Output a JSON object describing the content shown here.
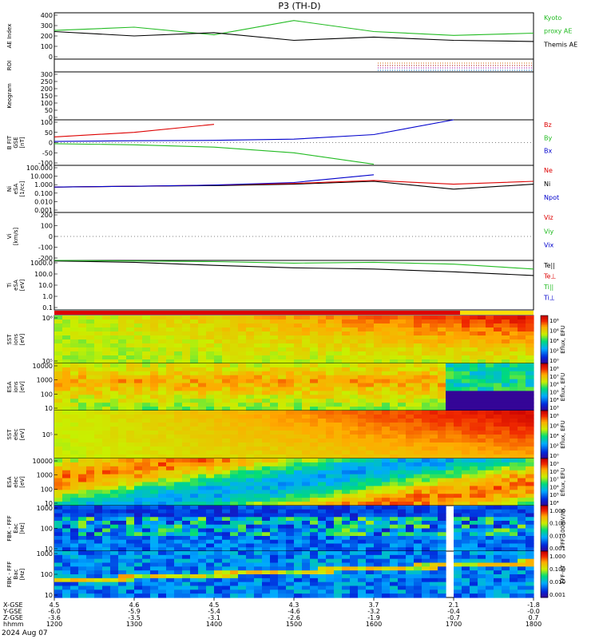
{
  "title": "P3 (TH-D)",
  "date_label": "2024 Aug 07",
  "ephemeris": {
    "row_labels": [
      "X-GSE",
      "Y-GSE",
      "Z-GSE",
      "hhmm"
    ],
    "columns": [
      {
        "x": "4.5",
        "y": "-6.0",
        "z": "-3.6",
        "t": "1200"
      },
      {
        "x": "4.6",
        "y": "-5.9",
        "z": "-3.5",
        "t": "1300"
      },
      {
        "x": "4.5",
        "y": "-5.4",
        "z": "-3.1",
        "t": "1400"
      },
      {
        "x": "4.3",
        "y": "-4.6",
        "z": "-2.6",
        "t": "1500"
      },
      {
        "x": "3.7",
        "y": "-3.2",
        "z": "-1.9",
        "t": "1600"
      },
      {
        "x": "2.1",
        "y": "-0.4",
        "z": "-0.7",
        "t": "1700"
      },
      {
        "x": "-1.8",
        "y": "-0.0",
        "z": "0.7",
        "t": "1800"
      }
    ]
  },
  "panels": [
    {
      "id": "ae",
      "ylabel": [
        "AE Index"
      ],
      "ticks": [
        "400",
        "300",
        "200",
        "100",
        "0"
      ],
      "legend": [
        {
          "text": "Kyoto",
          "color": "#22bb22"
        },
        {
          "text": "proxy AE",
          "color": "#22bb22"
        },
        {
          "text": "Themis AE",
          "color": "#000000"
        }
      ]
    },
    {
      "id": "roi",
      "ylabel": [
        "ROI"
      ],
      "ticks": [],
      "legend": []
    },
    {
      "id": "keogram",
      "ylabel": [
        "Keogram"
      ],
      "ticks": [
        "300",
        "250",
        "200",
        "150",
        "100",
        "50",
        "0"
      ],
      "legend": []
    },
    {
      "id": "bfit",
      "ylabel": [
        "B FIT",
        "GSE",
        "[nT]"
      ],
      "ticks": [
        "100",
        "50",
        "0",
        "-50",
        "-100"
      ],
      "legend": [
        {
          "text": "Bz",
          "color": "#dd0000"
        },
        {
          "text": "By",
          "color": "#22bb22"
        },
        {
          "text": "Bx",
          "color": "#0000cc"
        }
      ]
    },
    {
      "id": "ni",
      "ylabel": [
        "Ni",
        "eSA",
        "[1/cc]"
      ],
      "ticks": [
        "100.000",
        "10.000",
        "1.000",
        "0.100",
        "0.010",
        "0.001"
      ],
      "legend": [
        {
          "text": "Ne",
          "color": "#dd0000"
        },
        {
          "text": "Ni",
          "color": "#000000"
        },
        {
          "text": "Npot",
          "color": "#0000cc"
        }
      ]
    },
    {
      "id": "vi",
      "ylabel": [
        "Vi",
        "[km/s]"
      ],
      "ticks": [
        "200",
        "100",
        "0",
        "-100",
        "-200"
      ],
      "legend": [
        {
          "text": "Viz",
          "color": "#dd0000"
        },
        {
          "text": "Viy",
          "color": "#22bb22"
        },
        {
          "text": "Vix",
          "color": "#0000cc"
        }
      ]
    },
    {
      "id": "ti",
      "ylabel": [
        "Ti",
        "eSA",
        "[eV]"
      ],
      "ticks": [
        "1000.0",
        "100.0",
        "10.0",
        "1.0",
        "0.1"
      ],
      "legend": [
        {
          "text": "Te||",
          "color": "#000000"
        },
        {
          "text": "Te⊥",
          "color": "#dd0000"
        },
        {
          "text": "Ti||",
          "color": "#22bb22"
        },
        {
          "text": "Ti⊥",
          "color": "#0000cc"
        }
      ]
    },
    {
      "id": "sst_i",
      "ylabel": [
        "SST",
        "ions",
        "[eV]"
      ],
      "ticks": [
        "10⁶",
        "10⁵"
      ],
      "cbar": {
        "label": "Eflux, EFU",
        "ticks": [
          "10⁸",
          "10⁶",
          "10⁴",
          "10²",
          "10⁰"
        ]
      }
    },
    {
      "id": "esa_i",
      "ylabel": [
        "ESA",
        "ions",
        "[eV]"
      ],
      "ticks": [
        "10000",
        "1000",
        "100",
        "10"
      ],
      "cbar": {
        "label": "Eflux, EFU",
        "ticks": [
          "10⁸",
          "10⁷",
          "10⁶",
          "10⁵",
          "10⁴",
          "10³"
        ]
      }
    },
    {
      "id": "sst_e",
      "ylabel": [
        "SST",
        "elec",
        "[eV]"
      ],
      "ticks": [
        "10⁵"
      ],
      "cbar": {
        "label": "Eflux, EFU",
        "ticks": [
          "10⁸",
          "10⁶",
          "10⁴",
          "10²",
          "10⁰"
        ]
      }
    },
    {
      "id": "esa_e",
      "ylabel": [
        "ESA",
        "elec",
        "[eV]"
      ],
      "ticks": [
        "10000",
        "1000",
        "100",
        "10"
      ],
      "cbar": {
        "label": "Eflux, EFU",
        "ticks": [
          "10⁹",
          "10⁸",
          "10⁷",
          "10⁶",
          "10⁵",
          "10⁴"
        ]
      }
    },
    {
      "id": "fbk_e",
      "ylabel": [
        "FBK - FFF",
        "Eac",
        "[Hz]"
      ],
      "ticks": [
        "1000",
        "100",
        "10"
      ],
      "cbar": {
        "label": "FFF-100mV/m",
        "ticks": [
          "1.000",
          "0.100",
          "0.010",
          "0.001"
        ]
      }
    },
    {
      "id": "fbk_b",
      "ylabel": [
        "FBK - FFF",
        "Bac",
        "[Hz]"
      ],
      "ticks": [
        "1000",
        "100",
        "10"
      ],
      "cbar": {
        "label": "FFF-nT",
        "ticks": [
          "1.000",
          "0.100",
          "0.010",
          "0.001"
        ]
      }
    }
  ],
  "chart_data": {
    "type": "line",
    "title": "P3 (TH-D)",
    "x": [
      "1200",
      "1300",
      "1400",
      "1500",
      "1600",
      "1700",
      "1800"
    ],
    "xlabel": "hhmm",
    "series": [
      {
        "name": "Kyoto proxy AE",
        "panel": "ae",
        "values": [
          240,
          270,
          200,
          330,
          230,
          195,
          215
        ],
        "color": "#22bb22"
      },
      {
        "name": "Themis AE",
        "panel": "ae",
        "values": [
          230,
          190,
          220,
          150,
          180,
          150,
          140
        ],
        "color": "#000000"
      },
      {
        "name": "Bz",
        "panel": "bfit",
        "values": [
          25,
          45,
          80,
          null,
          null,
          null,
          null
        ],
        "color": "#dd0000"
      },
      {
        "name": "By",
        "panel": "bfit",
        "values": [
          -5,
          -10,
          -20,
          -45,
          -95,
          null,
          null
        ],
        "color": "#22bb22"
      },
      {
        "name": "Bx",
        "panel": "bfit",
        "values": [
          5,
          8,
          10,
          15,
          35,
          100,
          null
        ],
        "color": "#0000cc"
      },
      {
        "name": "Ni",
        "panel": "ni",
        "values": [
          0.5,
          0.6,
          0.7,
          1.0,
          2.0,
          0.3,
          1.0
        ],
        "color": "#000000"
      },
      {
        "name": "Ne",
        "panel": "ni",
        "values": [
          0.5,
          0.6,
          0.8,
          1.2,
          2.5,
          1.0,
          2.0
        ],
        "color": "#dd0000"
      },
      {
        "name": "Npot",
        "panel": "ni",
        "values": [
          0.5,
          0.6,
          0.8,
          1.5,
          10,
          null,
          null
        ],
        "color": "#0000cc"
      },
      {
        "name": "Te||",
        "panel": "ti",
        "values": [
          900,
          700,
          400,
          250,
          200,
          120,
          60
        ],
        "color": "#000000"
      },
      {
        "name": "Ti||",
        "panel": "ti",
        "values": [
          1000,
          900,
          800,
          600,
          700,
          500,
          200
        ],
        "color": "#22bb22"
      }
    ]
  }
}
